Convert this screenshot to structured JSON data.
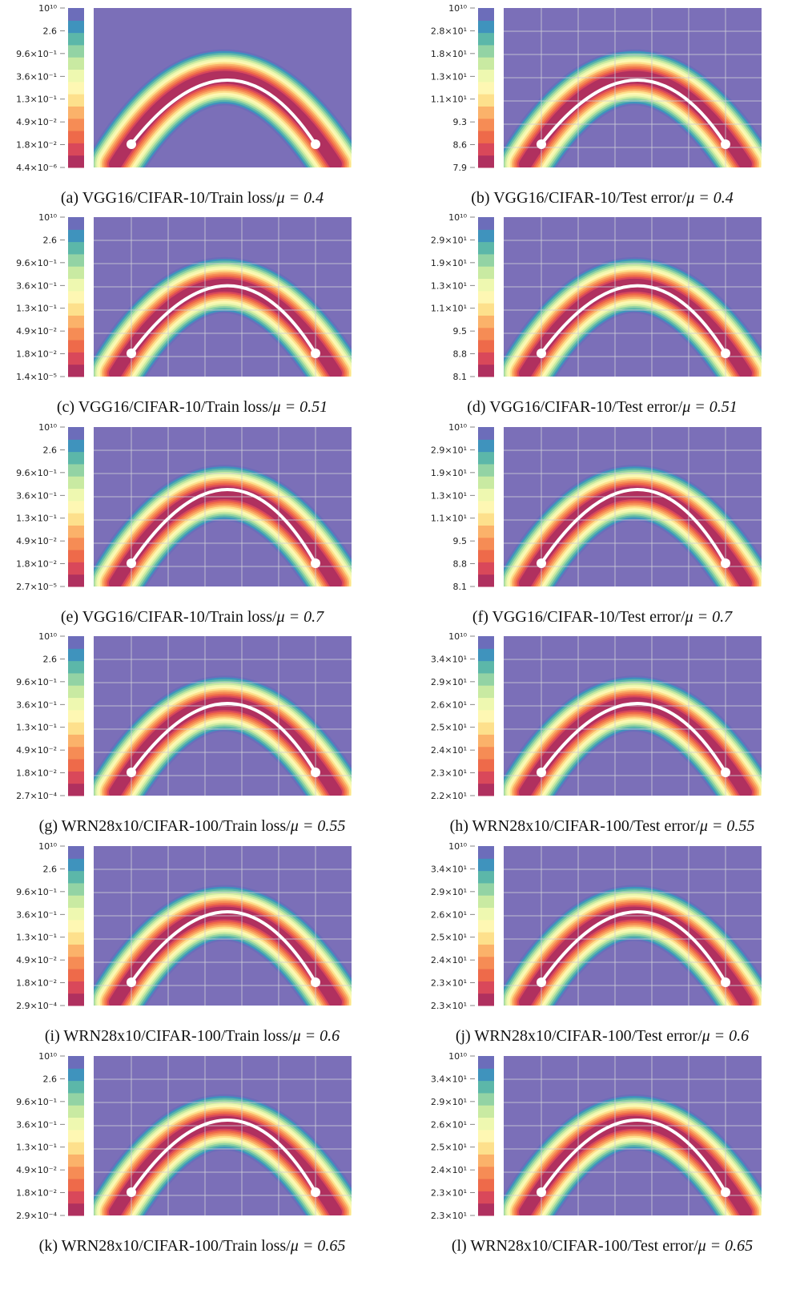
{
  "colors": {
    "background_region": "#7b6fb8",
    "basin_core": "#b0305f",
    "curve": "#ffffff",
    "colorbar": [
      "#b0305f",
      "#d9485a",
      "#ee6a4a",
      "#f68c55",
      "#fbb26a",
      "#fde08c",
      "#fef7b3",
      "#eef8b0",
      "#c9eaa2",
      "#93d3a4",
      "#5cb7a9",
      "#3f93bd",
      "#6c6dba"
    ]
  },
  "chart_data": [
    {
      "type": "heatmap",
      "caption": "(a) VGG16/CIFAR-10/Train loss/",
      "mu_label": "μ = 0.4",
      "mu": 0.4,
      "colorbar_ticks": [
        "4.4×10⁻⁶",
        "1.8×10⁻²",
        "4.9×10⁻²",
        "1.3×10⁻¹",
        "3.6×10⁻¹",
        "9.6×10⁻¹",
        "2.6",
        "10¹⁰"
      ],
      "grid": false,
      "curve_endpoints": [
        [
          0,
          0
        ],
        [
          1,
          0
        ]
      ]
    },
    {
      "type": "heatmap",
      "caption": "(b) VGG16/CIFAR-10/Test error/",
      "mu_label": "μ = 0.4",
      "mu": 0.4,
      "colorbar_ticks": [
        "7.9",
        "8.6",
        "9.3",
        "1.1×10¹",
        "1.3×10¹",
        "1.8×10¹",
        "2.8×10¹",
        "10¹⁰"
      ],
      "grid": true,
      "curve_endpoints": [
        [
          0,
          0
        ],
        [
          1,
          0
        ]
      ]
    },
    {
      "type": "heatmap",
      "caption": "(c) VGG16/CIFAR-10/Train loss/",
      "mu_label": "μ = 0.51",
      "mu": 0.51,
      "colorbar_ticks": [
        "1.4×10⁻⁵",
        "1.8×10⁻²",
        "4.9×10⁻²",
        "1.3×10⁻¹",
        "3.6×10⁻¹",
        "9.6×10⁻¹",
        "2.6",
        "10¹⁰"
      ],
      "grid": true,
      "curve_endpoints": [
        [
          0,
          0
        ],
        [
          1,
          0
        ]
      ]
    },
    {
      "type": "heatmap",
      "caption": "(d) VGG16/CIFAR-10/Test error/",
      "mu_label": "μ = 0.51",
      "mu": 0.51,
      "colorbar_ticks": [
        "8.1",
        "8.8",
        "9.5",
        "1.1×10¹",
        "1.3×10¹",
        "1.9×10¹",
        "2.9×10¹",
        "10¹⁰"
      ],
      "grid": true,
      "curve_endpoints": [
        [
          0,
          0
        ],
        [
          1,
          0
        ]
      ]
    },
    {
      "type": "heatmap",
      "caption": "(e) VGG16/CIFAR-10/Train loss/",
      "mu_label": "μ = 0.7",
      "mu": 0.7,
      "colorbar_ticks": [
        "2.7×10⁻⁵",
        "1.8×10⁻²",
        "4.9×10⁻²",
        "1.3×10⁻¹",
        "3.6×10⁻¹",
        "9.6×10⁻¹",
        "2.6",
        "10¹⁰"
      ],
      "grid": true,
      "curve_endpoints": [
        [
          0,
          0
        ],
        [
          1,
          0
        ]
      ]
    },
    {
      "type": "heatmap",
      "caption": "(f) VGG16/CIFAR-10/Test error/",
      "mu_label": "μ = 0.7",
      "mu": 0.7,
      "colorbar_ticks": [
        "8.1",
        "8.8",
        "9.5",
        "1.1×10¹",
        "1.3×10¹",
        "1.9×10¹",
        "2.9×10¹",
        "10¹⁰"
      ],
      "grid": true,
      "curve_endpoints": [
        [
          0,
          0
        ],
        [
          1,
          0
        ]
      ]
    },
    {
      "type": "heatmap",
      "caption": "(g) WRN28x10/CIFAR-100/Train loss/",
      "mu_label": "μ = 0.55",
      "mu": 0.55,
      "colorbar_ticks": [
        "2.7×10⁻⁴",
        "1.8×10⁻²",
        "4.9×10⁻²",
        "1.3×10⁻¹",
        "3.6×10⁻¹",
        "9.6×10⁻¹",
        "2.6",
        "10¹⁰"
      ],
      "grid": true,
      "curve_endpoints": [
        [
          0,
          0
        ],
        [
          1,
          0
        ]
      ]
    },
    {
      "type": "heatmap",
      "caption": "(h) WRN28x10/CIFAR-100/Test error/",
      "mu_label": "μ = 0.55",
      "mu": 0.55,
      "colorbar_ticks": [
        "2.2×10¹",
        "2.3×10¹",
        "2.4×10¹",
        "2.5×10¹",
        "2.6×10¹",
        "2.9×10¹",
        "3.4×10¹",
        "10¹⁰"
      ],
      "grid": true,
      "curve_endpoints": [
        [
          0,
          0
        ],
        [
          1,
          0
        ]
      ]
    },
    {
      "type": "heatmap",
      "caption": "(i) WRN28x10/CIFAR-100/Train loss/",
      "mu_label": "μ = 0.6",
      "mu": 0.6,
      "colorbar_ticks": [
        "2.9×10⁻⁴",
        "1.8×10⁻²",
        "4.9×10⁻²",
        "1.3×10⁻¹",
        "3.6×10⁻¹",
        "9.6×10⁻¹",
        "2.6",
        "10¹⁰"
      ],
      "grid": true,
      "curve_endpoints": [
        [
          0,
          0
        ],
        [
          1,
          0
        ]
      ]
    },
    {
      "type": "heatmap",
      "caption": "(j) WRN28x10/CIFAR-100/Test error/",
      "mu_label": "μ = 0.6",
      "mu": 0.6,
      "colorbar_ticks": [
        "2.3×10¹",
        "2.3×10¹",
        "2.4×10¹",
        "2.5×10¹",
        "2.6×10¹",
        "2.9×10¹",
        "3.4×10¹",
        "10¹⁰"
      ],
      "grid": true,
      "curve_endpoints": [
        [
          0,
          0
        ],
        [
          1,
          0
        ]
      ]
    },
    {
      "type": "heatmap",
      "caption": "(k) WRN28x10/CIFAR-100/Train loss/",
      "mu_label": "μ = 0.65",
      "mu": 0.65,
      "colorbar_ticks": [
        "2.9×10⁻⁴",
        "1.8×10⁻²",
        "4.9×10⁻²",
        "1.3×10⁻¹",
        "3.6×10⁻¹",
        "9.6×10⁻¹",
        "2.6",
        "10¹⁰"
      ],
      "grid": true,
      "curve_endpoints": [
        [
          0,
          0
        ],
        [
          1,
          0
        ]
      ]
    },
    {
      "type": "heatmap",
      "caption": "(l) WRN28x10/CIFAR-100/Test error/",
      "mu_label": "μ = 0.65",
      "mu": 0.65,
      "colorbar_ticks": [
        "2.3×10¹",
        "2.3×10¹",
        "2.4×10¹",
        "2.5×10¹",
        "2.6×10¹",
        "2.9×10¹",
        "3.4×10¹",
        "10¹⁰"
      ],
      "grid": true,
      "curve_endpoints": [
        [
          0,
          0
        ],
        [
          1,
          0
        ]
      ]
    }
  ]
}
